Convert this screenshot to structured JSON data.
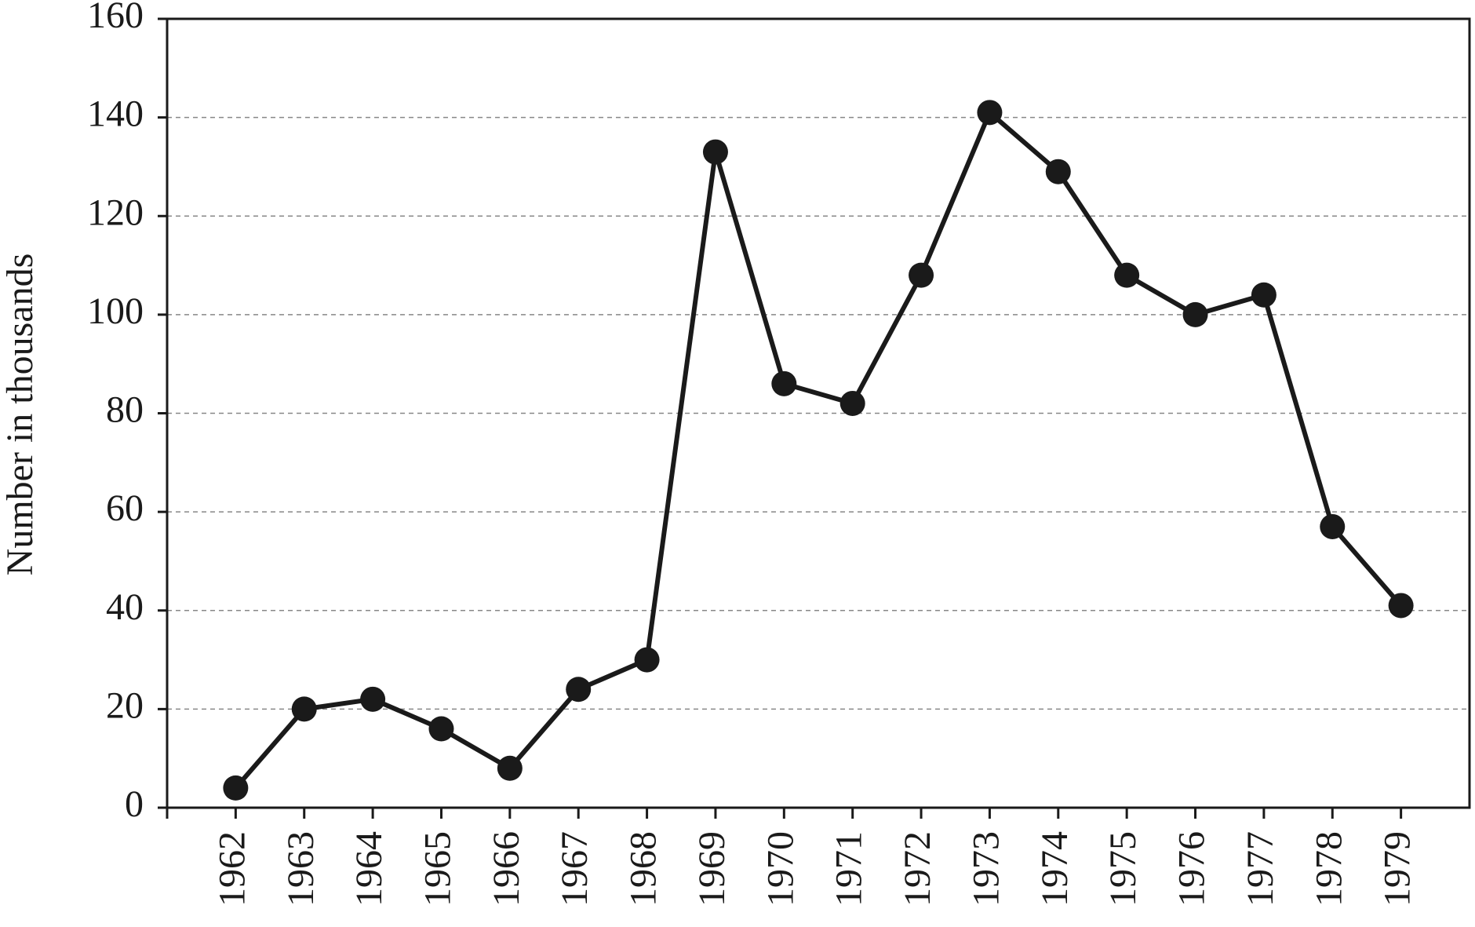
{
  "chart_data": {
    "type": "line",
    "ylabel": "Number in thousands",
    "categories": [
      "1962",
      "1963",
      "1964",
      "1965",
      "1966",
      "1967",
      "1968",
      "1969",
      "1970",
      "1971",
      "1972",
      "1973",
      "1974",
      "1975",
      "1976",
      "1977",
      "1978",
      "1979"
    ],
    "series": [
      {
        "color": "#1a1a1a",
        "values": [
          4,
          20,
          22,
          16,
          8,
          24,
          30,
          133,
          86,
          82,
          108,
          141,
          129,
          108,
          100,
          104,
          57,
          41
        ]
      }
    ],
    "ylim": [
      0,
      160
    ],
    "yticks": [
      0,
      20,
      40,
      60,
      80,
      100,
      120,
      140,
      160
    ],
    "grid": true
  }
}
